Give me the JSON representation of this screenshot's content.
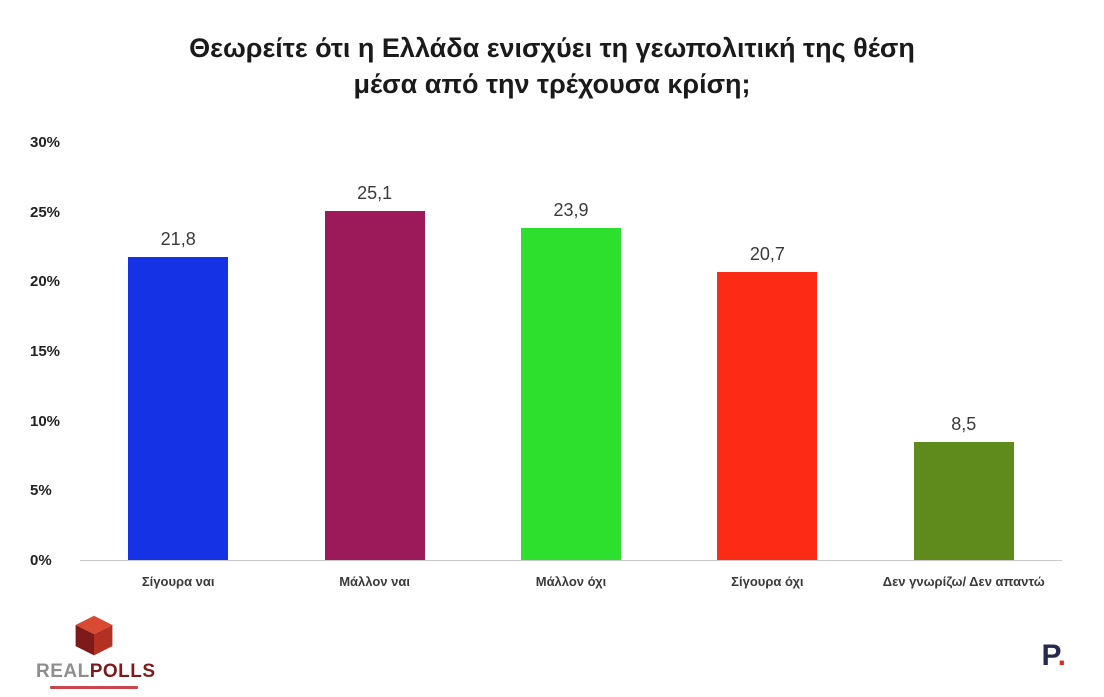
{
  "chart_data": {
    "type": "bar",
    "title": "Θεωρείτε ότι η Ελλάδα ενισχύει τη γεωπολιτική της θέση μέσα από την τρέχουσα κρίση;",
    "categories": [
      "Σίγουρα ναι",
      "Μάλλον ναι",
      "Μάλλον όχι",
      "Σίγουρα όχι",
      "Δεν γνωρίζω/ Δεν απαντώ"
    ],
    "values": [
      21.8,
      25.1,
      23.9,
      20.7,
      8.5
    ],
    "value_labels": [
      "21,8",
      "25,1",
      "23,9",
      "20,7",
      "8,5"
    ],
    "bar_colors": [
      "#1532e5",
      "#9c1a5a",
      "#2de02d",
      "#fd2b16",
      "#5f8a1c"
    ],
    "xlabel": "",
    "ylabel": "",
    "ylim": [
      0,
      30
    ],
    "y_ticks": [
      "0%",
      "5%",
      "10%",
      "15%",
      "20%",
      "25%",
      "30%"
    ],
    "grid": false,
    "legend": "none"
  },
  "footer": {
    "left_logo": {
      "real": "REAL",
      "polls": "POLLS"
    },
    "right_logo": {
      "letter": "P",
      "dot": "."
    }
  },
  "colors": {
    "baseline": "#c9c9c9",
    "title_text": "#1a1a1a",
    "axis_text": "#222222",
    "value_text": "#3a3a3a",
    "logo_real": "#8e8e8e",
    "logo_polls": "#7c1b1b",
    "p_logo": "#242b4e",
    "p_dot": "#e5261f"
  }
}
